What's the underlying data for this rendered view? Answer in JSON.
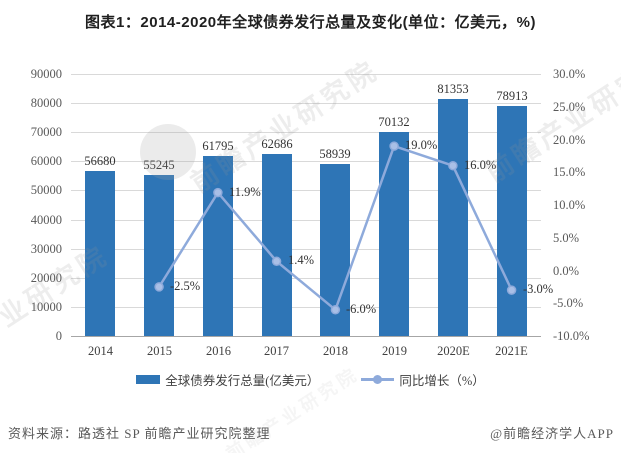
{
  "chart_data": {
    "type": "bar",
    "title": "图表1：2014-2020年全球债券发行总量及变化(单位：亿美元，%)",
    "categories": [
      "2014",
      "2015",
      "2016",
      "2017",
      "2018",
      "2019",
      "2020E",
      "2021E"
    ],
    "series": [
      {
        "name": "全球债券发行总量(亿美元）",
        "kind": "bar",
        "axis": "left",
        "values": [
          56680,
          55245,
          61795,
          62686,
          58939,
          70132,
          81353,
          78913
        ],
        "color": "#2e75b6"
      },
      {
        "name": "同比增长（%）",
        "kind": "line",
        "axis": "right",
        "values": [
          null,
          -2.5,
          11.9,
          1.4,
          -6.0,
          19.0,
          16.0,
          -3.0
        ],
        "point_labels": [
          "",
          "-2.5%",
          "11.9%",
          "1.4%",
          "-6.0%",
          "19.0%",
          "16.0%",
          "-3.0%"
        ],
        "color": "#8eaadb",
        "marker_fill": "#a9bfe6"
      }
    ],
    "left_axis": {
      "min": 0,
      "max": 90000,
      "step": 10000
    },
    "right_axis": {
      "min": -10,
      "max": 30,
      "step": 5,
      "suffix": "%"
    },
    "grid": true,
    "legend_position": "bottom"
  },
  "footer": {
    "source": "资料来源：路透社 SP 前瞻产业研究院整理",
    "brand": "@前瞻经济学人APP"
  },
  "watermark": {
    "text": "前瞻产业研究院"
  }
}
